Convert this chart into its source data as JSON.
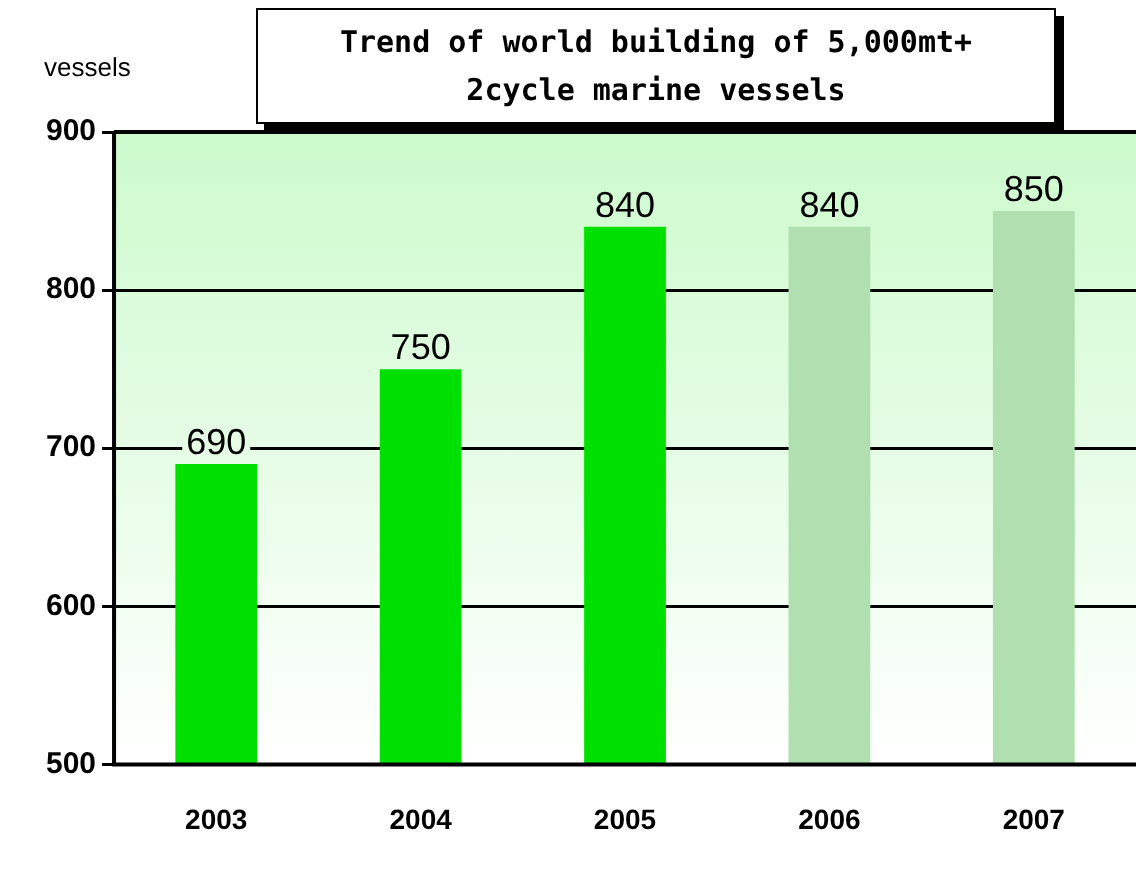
{
  "chart_data": {
    "type": "bar",
    "title": "Trend of world building of 5,000mt+\n2cycle marine vessels",
    "ylabel": "vessels",
    "categories": [
      "2003",
      "2004",
      "2005",
      "2006",
      "2007"
    ],
    "values": [
      690,
      750,
      840,
      840,
      850
    ],
    "colors": [
      "#00e000",
      "#00e000",
      "#00e000",
      "#b0e0b0",
      "#b0e0b0"
    ],
    "ylim": [
      500,
      900
    ],
    "yticks": [
      500,
      600,
      700,
      800,
      900
    ],
    "grid": "y",
    "legend": false,
    "data_labels": true
  }
}
